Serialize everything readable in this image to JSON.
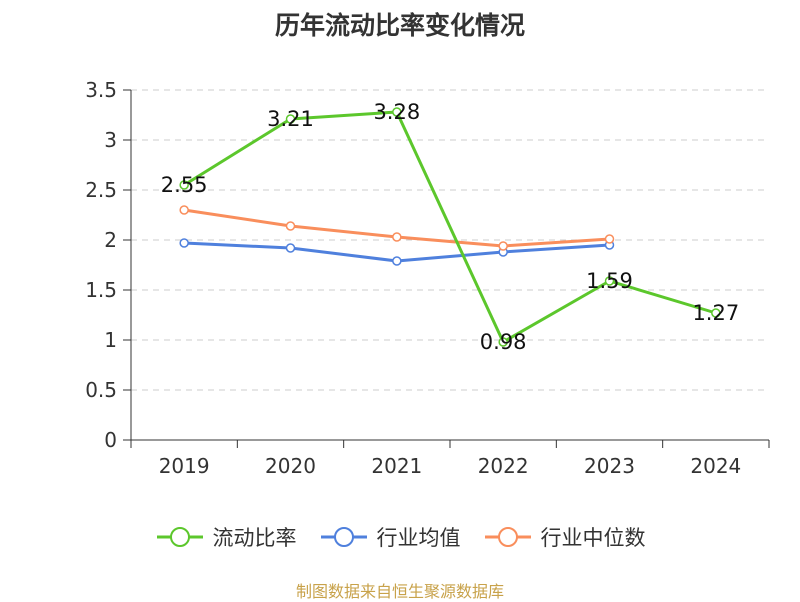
{
  "chart_data": {
    "type": "line",
    "title": "历年流动比率变化情况",
    "categories": [
      "2019",
      "2020",
      "2021",
      "2022",
      "2023",
      "2024"
    ],
    "ylim": [
      0,
      3.5
    ],
    "yticks": [
      "0",
      "0.5",
      "1",
      "1.5",
      "2",
      "2.5",
      "3",
      "3.5"
    ],
    "ytick_values": [
      0,
      0.5,
      1,
      1.5,
      2,
      2.5,
      3,
      3.5
    ],
    "grid": true,
    "legend_position": "bottom",
    "series": [
      {
        "name": "流动比率",
        "color": "#5cc72c",
        "values": [
          2.55,
          3.21,
          3.28,
          0.98,
          1.59,
          1.27
        ],
        "labels": [
          "2.55",
          "3.21",
          "3.28",
          "0.98",
          "1.59",
          "1.27"
        ]
      },
      {
        "name": "行业均值",
        "color": "#4f80dd",
        "values": [
          1.97,
          1.92,
          1.79,
          1.88,
          1.95,
          null
        ]
      },
      {
        "name": "行业中位数",
        "color": "#f98e5c",
        "values": [
          2.3,
          2.14,
          2.03,
          1.94,
          2.01,
          null
        ]
      }
    ]
  },
  "source_note": "制图数据来自恒生聚源数据库"
}
